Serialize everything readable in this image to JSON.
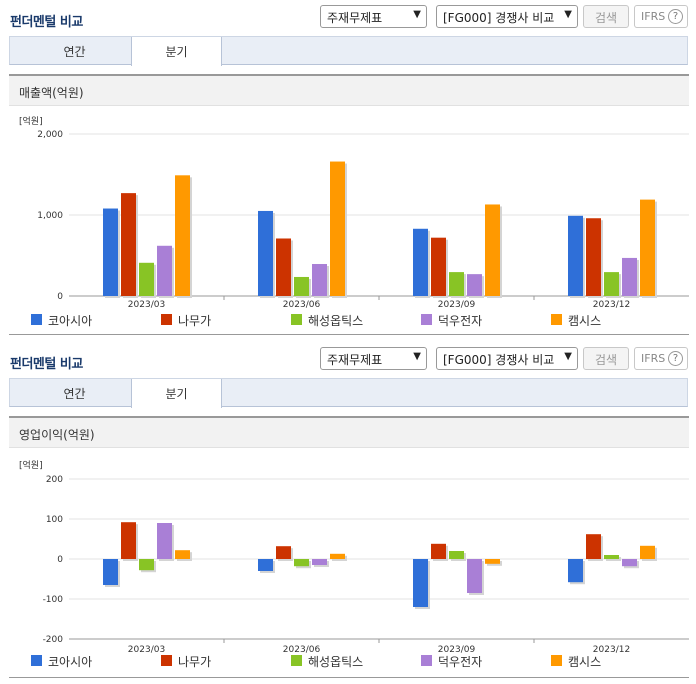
{
  "panels": [
    {
      "title": "펀더멘털 비교",
      "select1": "주재무제표",
      "select2": "[FG000] 경쟁사 비교",
      "search_label": "검색",
      "ifrs_label": "IFRS",
      "ifrs_help": "?",
      "tabs": [
        "연간",
        "분기"
      ],
      "active_tab": 1,
      "chart_title": "매출액(억원)",
      "unit_label": "[억원]"
    },
    {
      "title": "펀더멘털 비교",
      "select1": "주재무제표",
      "select2": "[FG000] 경쟁사 비교",
      "search_label": "검색",
      "ifrs_label": "IFRS",
      "ifrs_help": "?",
      "tabs": [
        "연간",
        "분기"
      ],
      "active_tab": 1,
      "chart_title": "영업이익(억원)",
      "unit_label": "[억원]"
    }
  ],
  "icons": {
    "select_arrow": "chevron-down-icon",
    "help": "question-circle-icon"
  },
  "colors": {
    "title": "#1a3a6b",
    "tab_bg": "#e9eef6",
    "series": [
      "#2f6fd8",
      "#cc3300",
      "#88c425",
      "#a97fd6",
      "#ff9900"
    ]
  },
  "chart_data": [
    {
      "type": "bar",
      "title": "매출액(억원)",
      "ylabel": "[억원]",
      "categories": [
        "2023/03",
        "2023/06",
        "2023/09",
        "2023/12"
      ],
      "ylim": [
        0,
        2000
      ],
      "yticks": [
        0,
        1000,
        2000
      ],
      "ytick_labels": [
        "0",
        "1,000",
        "2,000"
      ],
      "grid": true,
      "legend": "bottom",
      "series": [
        {
          "name": "코아시아",
          "color": "#2f6fd8",
          "values": [
            1080,
            1050,
            830,
            990
          ]
        },
        {
          "name": "나무가",
          "color": "#cc3300",
          "values": [
            1270,
            710,
            720,
            960
          ]
        },
        {
          "name": "해성옵틱스",
          "color": "#88c425",
          "values": [
            410,
            235,
            295,
            295
          ]
        },
        {
          "name": "덕우전자",
          "color": "#a97fd6",
          "values": [
            620,
            395,
            270,
            470
          ]
        },
        {
          "name": "캠시스",
          "color": "#ff9900",
          "values": [
            1490,
            1660,
            1130,
            1190
          ]
        }
      ]
    },
    {
      "type": "bar",
      "title": "영업이익(억원)",
      "ylabel": "[억원]",
      "categories": [
        "2023/03",
        "2023/06",
        "2023/09",
        "2023/12"
      ],
      "ylim": [
        -200,
        200
      ],
      "yticks": [
        -200,
        -100,
        0,
        100,
        200
      ],
      "ytick_labels": [
        "-200",
        "-100",
        "0",
        "100",
        "200"
      ],
      "grid": true,
      "legend": "bottom",
      "series": [
        {
          "name": "코아시아",
          "color": "#2f6fd8",
          "values": [
            -65,
            -30,
            -120,
            -58
          ]
        },
        {
          "name": "나무가",
          "color": "#cc3300",
          "values": [
            92,
            32,
            38,
            62
          ]
        },
        {
          "name": "해성옵틱스",
          "color": "#88c425",
          "values": [
            -28,
            -18,
            20,
            10
          ]
        },
        {
          "name": "덕우전자",
          "color": "#a97fd6",
          "values": [
            90,
            -15,
            -85,
            -18
          ]
        },
        {
          "name": "캠시스",
          "color": "#ff9900",
          "values": [
            22,
            13,
            -12,
            33
          ]
        }
      ]
    }
  ]
}
